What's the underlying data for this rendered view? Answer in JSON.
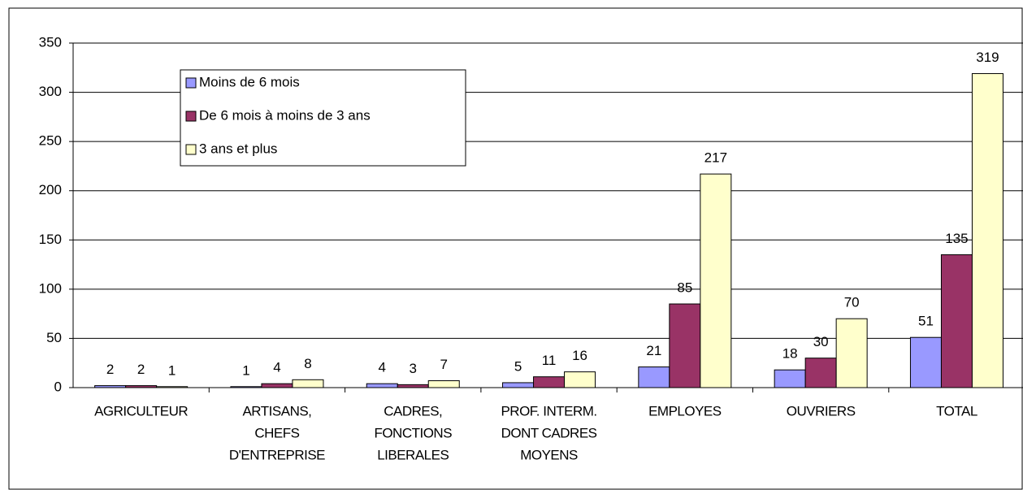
{
  "chart_data": {
    "type": "bar",
    "categories": [
      [
        "AGRICULTEUR"
      ],
      [
        "ARTISANS,",
        "CHEFS",
        "D'ENTREPRISE"
      ],
      [
        "CADRES,",
        "FONCTIONS",
        "LIBERALES"
      ],
      [
        "PROF. INTERM.",
        "DONT CADRES",
        "MOYENS"
      ],
      [
        "EMPLOYES"
      ],
      [
        "OUVRIERS"
      ],
      [
        "TOTAL"
      ]
    ],
    "series": [
      {
        "name": "Moins de 6 mois",
        "color": "#9999ff",
        "values": [
          2,
          1,
          4,
          5,
          21,
          18,
          51
        ]
      },
      {
        "name": "De 6 mois à moins de 3 ans",
        "color": "#993366",
        "values": [
          2,
          4,
          3,
          11,
          85,
          30,
          135
        ]
      },
      {
        "name": "3 ans et plus",
        "color": "#ffffcc",
        "values": [
          1,
          8,
          7,
          16,
          217,
          70,
          319
        ]
      }
    ],
    "ylim": [
      0,
      350
    ],
    "yticks": [
      0,
      50,
      100,
      150,
      200,
      250,
      300,
      350
    ],
    "grid": true,
    "legend": "top-left"
  }
}
